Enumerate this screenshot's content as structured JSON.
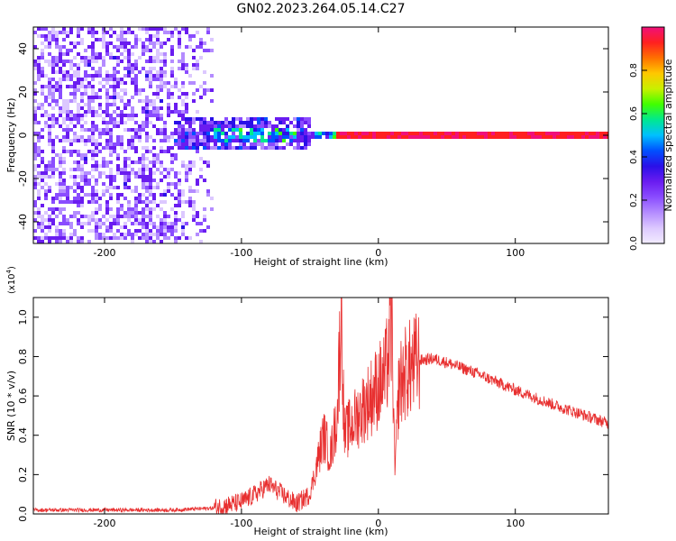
{
  "title": "GN02.2023.264.05.14.C27",
  "chart_data": [
    {
      "type": "heatmap",
      "xlabel": "Height of straight line (km)",
      "ylabel": "Frequency (Hz)",
      "xlim": [
        -252,
        168
      ],
      "ylim": [
        -50,
        50
      ],
      "xticks": [
        -200,
        -100,
        0,
        100
      ],
      "xtick_labels": [
        "-200",
        "-100",
        "0",
        "100"
      ],
      "yticks": [
        -40,
        -20,
        0,
        20,
        40
      ],
      "ytick_labels": [
        "-40",
        "-20",
        "0",
        "20",
        "40"
      ],
      "colorbar": {
        "label": "Normalized spectral amplitude",
        "range": [
          0,
          1
        ],
        "ticks": [
          0.0,
          0.2,
          0.4,
          0.6,
          0.8
        ],
        "tick_labels": [
          "0.0",
          "0.2",
          "0.4",
          "0.6",
          "0.8"
        ],
        "colors": [
          "#f2ecff",
          "#dcc8ff",
          "#b48cff",
          "#8a4cff",
          "#6a1cf0",
          "#2a10e8",
          "#0050ff",
          "#00c0ff",
          "#00e890",
          "#40ff00",
          "#c8f000",
          "#ffc800",
          "#ff7000",
          "#ff2020",
          "#f0107a"
        ]
      },
      "regions": [
        {
          "x": [
            -252,
            -120
          ],
          "y": [
            -50,
            50
          ],
          "level": 0.18
        },
        {
          "x": [
            -150,
            -50
          ],
          "y": [
            -6,
            8
          ],
          "level": 0.3
        },
        {
          "x": [
            -120,
            -60
          ],
          "y": [
            -3,
            4
          ],
          "level": 0.45
        },
        {
          "x": [
            -50,
            -30
          ],
          "y": [
            -1,
            2
          ],
          "level": 0.5
        },
        {
          "x": [
            -30,
            168
          ],
          "y": [
            -1,
            1
          ],
          "level": 0.9
        }
      ]
    },
    {
      "type": "line",
      "xlabel": "Height of straight line (km)",
      "ylabel": "SNR (10 * v/v)",
      "y_multiplier": "(x10⁴)",
      "y_multiplier_base": "(x10",
      "y_multiplier_exp": "4",
      "y_multiplier_close": ")",
      "xlim": [
        -252,
        168
      ],
      "ylim": [
        0,
        1.1
      ],
      "xticks": [
        -200,
        -100,
        0,
        100
      ],
      "xtick_labels": [
        "-200",
        "-100",
        "0",
        "100"
      ],
      "yticks": [
        0.0,
        0.2,
        0.4,
        0.6,
        0.8,
        1.0
      ],
      "ytick_labels": [
        "0.0",
        "0.2",
        "0.4",
        "0.6",
        "0.8",
        "1.0"
      ],
      "color": "#e83030",
      "series": [
        {
          "x": [
            -252,
            -200,
            -150,
            -120,
            -100,
            -90,
            -80,
            -70,
            -60,
            -50,
            -45,
            -40,
            -35,
            -30,
            -27,
            -25,
            -20,
            -15,
            -10,
            -5,
            0,
            5,
            10,
            12,
            15,
            20,
            30,
            40,
            50,
            70,
            100,
            130,
            168
          ],
          "y": [
            0.02,
            0.02,
            0.02,
            0.03,
            0.06,
            0.1,
            0.15,
            0.1,
            0.05,
            0.1,
            0.25,
            0.4,
            0.3,
            0.5,
            1.1,
            0.4,
            0.45,
            0.5,
            0.55,
            0.6,
            0.65,
            0.7,
            0.95,
            0.2,
            0.65,
            0.72,
            0.78,
            0.79,
            0.77,
            0.72,
            0.63,
            0.55,
            0.46
          ]
        }
      ]
    }
  ]
}
